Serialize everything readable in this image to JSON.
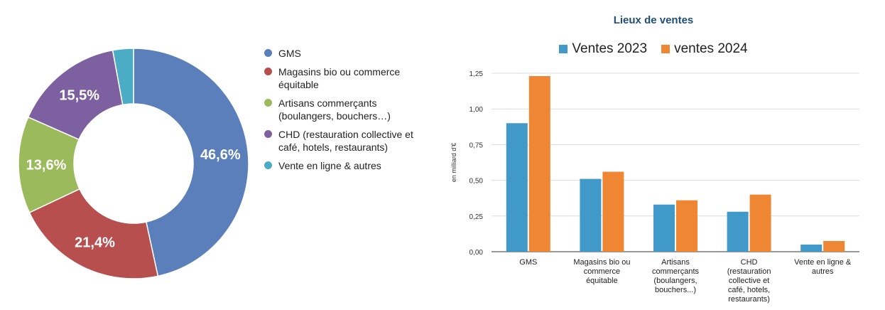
{
  "chart_data": [
    {
      "type": "pie",
      "donut": true,
      "labels": [
        "GMS",
        "Magasins bio ou commerce équitable",
        "Artisans commerçants (boulangers, bouchers…)",
        "CHD (restauration collective et café, hotels, restaurants)",
        "Vente en ligne & autres"
      ],
      "values": [
        46.6,
        21.4,
        13.6,
        15.5,
        2.9
      ],
      "value_labels": [
        "46,6%",
        "21,4%",
        "13,6%",
        "15,5%",
        ""
      ],
      "colors": [
        "#5b7fba",
        "#b84f4f",
        "#9bba5c",
        "#7d60a0",
        "#4bacc6"
      ],
      "legend_position": "right"
    },
    {
      "type": "bar",
      "title": "Lieux de ventes",
      "ylabel": "en milliard d'€",
      "categories": [
        "GMS",
        "Magasins bio ou commerce équitable",
        "Artisans commerçants (boulangers, bouchers...)",
        "CHD (restauration collective et café, hotels, restaurants)",
        "Vente en ligne & autres"
      ],
      "category_lines": [
        [
          "GMS"
        ],
        [
          "Magasins bio ou",
          "commerce",
          "équitable"
        ],
        [
          "Artisans",
          "commerçants",
          "(boulangers,",
          "bouchers...)"
        ],
        [
          "CHD",
          "(restauration",
          "collective et",
          "café, hotels,",
          "restaurants)"
        ],
        [
          "Vente en ligne &",
          "autres"
        ]
      ],
      "series": [
        {
          "name": "Ventes 2023",
          "values": [
            0.9,
            0.51,
            0.33,
            0.28,
            0.05
          ],
          "color": "#4099c8"
        },
        {
          "name": "ventes 2024",
          "values": [
            1.23,
            0.56,
            0.36,
            0.4,
            0.075
          ],
          "color": "#ef8634"
        }
      ],
      "ylim": [
        0,
        1.25
      ],
      "yticks": [
        0,
        0.25,
        0.5,
        0.75,
        1.0,
        1.25
      ],
      "ytick_labels": [
        "0,00",
        "0,25",
        "0,50",
        "0,75",
        "1,00",
        "1,25"
      ],
      "grid": true,
      "legend_position": "top"
    }
  ]
}
